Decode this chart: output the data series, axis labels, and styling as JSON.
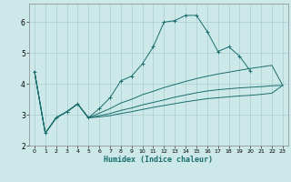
{
  "xlabel": "Humidex (Indice chaleur)",
  "background_color": "#cce8e8",
  "grid_color": "#aacece",
  "line_color": "#1a6e6e",
  "xlim": [
    -0.5,
    23.5
  ],
  "ylim": [
    2.0,
    6.6
  ],
  "yticks": [
    2,
    3,
    4,
    5,
    6
  ],
  "xticks": [
    0,
    1,
    2,
    3,
    4,
    5,
    6,
    7,
    8,
    9,
    10,
    11,
    12,
    13,
    14,
    15,
    16,
    17,
    18,
    19,
    20,
    21,
    22,
    23
  ],
  "series": [
    {
      "x": [
        0,
        1,
        2,
        3,
        4,
        5,
        6,
        7,
        8,
        9,
        10,
        11,
        12,
        13,
        14,
        15,
        16,
        17,
        18,
        19,
        20
      ],
      "y": [
        4.4,
        2.4,
        2.9,
        3.1,
        3.35,
        2.9,
        3.2,
        3.55,
        4.1,
        4.25,
        4.65,
        5.2,
        6.0,
        6.05,
        6.22,
        6.22,
        5.7,
        5.05,
        5.2,
        4.9,
        4.42
      ],
      "marker": true
    },
    {
      "x": [
        0,
        1,
        2,
        3,
        4,
        5,
        6,
        7,
        8,
        9,
        10,
        11,
        12,
        13,
        14,
        15,
        16,
        17,
        18,
        19,
        20,
        21,
        22,
        23
      ],
      "y": [
        4.4,
        2.4,
        2.9,
        3.1,
        3.35,
        2.9,
        3.05,
        3.2,
        3.38,
        3.5,
        3.65,
        3.76,
        3.88,
        3.98,
        4.08,
        4.17,
        4.25,
        4.32,
        4.38,
        4.44,
        4.5,
        4.55,
        4.6,
        3.95
      ],
      "marker": false
    },
    {
      "x": [
        0,
        1,
        2,
        3,
        4,
        5,
        6,
        7,
        8,
        9,
        10,
        11,
        12,
        13,
        14,
        15,
        16,
        17,
        18,
        19,
        20,
        21,
        22,
        23
      ],
      "y": [
        4.4,
        2.4,
        2.9,
        3.1,
        3.35,
        2.9,
        2.97,
        3.04,
        3.14,
        3.22,
        3.32,
        3.4,
        3.48,
        3.57,
        3.64,
        3.71,
        3.77,
        3.81,
        3.84,
        3.87,
        3.89,
        3.91,
        3.94,
        3.95
      ],
      "marker": false
    },
    {
      "x": [
        0,
        1,
        2,
        3,
        4,
        5,
        6,
        7,
        8,
        9,
        10,
        11,
        12,
        13,
        14,
        15,
        16,
        17,
        18,
        19,
        20,
        21,
        22,
        23
      ],
      "y": [
        4.4,
        2.4,
        2.9,
        3.1,
        3.35,
        2.9,
        2.93,
        2.97,
        3.04,
        3.1,
        3.17,
        3.24,
        3.3,
        3.36,
        3.42,
        3.47,
        3.52,
        3.55,
        3.58,
        3.61,
        3.63,
        3.66,
        3.7,
        3.95
      ],
      "marker": false
    }
  ]
}
